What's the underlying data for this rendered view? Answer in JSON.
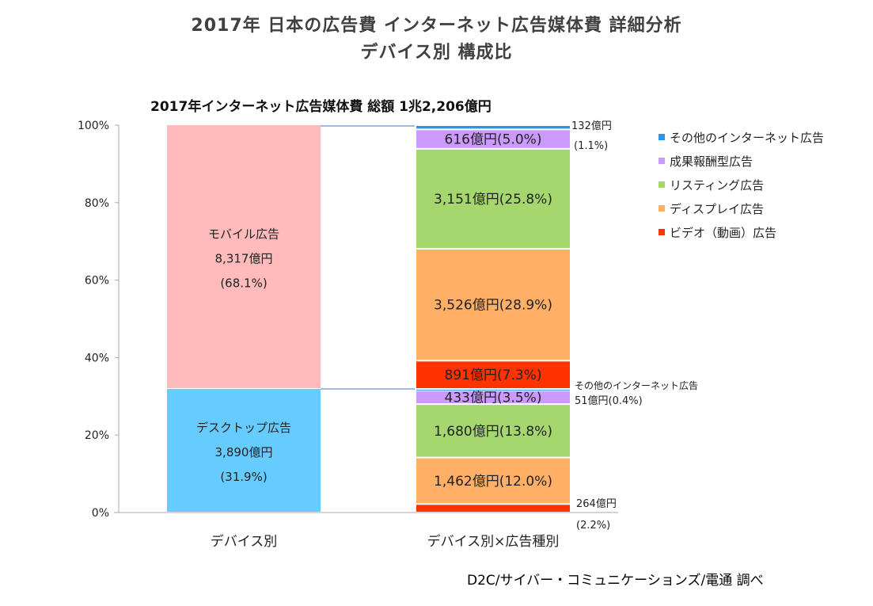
{
  "titles": {
    "line1": "2017年 日本の広告費  インターネット広告媒体費  詳細分析",
    "line2": "デバイス別  構成比"
  },
  "subtitle": "2017年インターネット広告媒体費  総額  1兆2,206億円",
  "source": "D2C/サイバー・コミュニケーションズ/電通 調べ",
  "chart_data": {
    "type": "bar",
    "stacked": true,
    "percent_stacked": true,
    "title": "2017年インターネット広告媒体費  総額  1兆2,206億円",
    "xlabel": "",
    "ylabel": "",
    "ylim": [
      0,
      100
    ],
    "yticks": [
      "0%",
      "20%",
      "40%",
      "60%",
      "80%",
      "100%"
    ],
    "categories": [
      "デバイス別",
      "デバイス別×広告種別"
    ],
    "legend_position": "right",
    "legend": [
      {
        "name": "その他のインターネット広告",
        "color": "#2E94E6"
      },
      {
        "name": "成果報酬型広告",
        "color": "#CC99FF"
      },
      {
        "name": "リスティング広告",
        "color": "#A5D76E"
      },
      {
        "name": "ディスプレイ広告",
        "color": "#FFB066"
      },
      {
        "name": "ビデオ（動画）広告",
        "color": "#FF3300"
      }
    ],
    "device_bar": [
      {
        "name": "デスクトップ広告",
        "value_oku_yen": 3890,
        "percent": 31.9,
        "color": "#66CCFF",
        "label_lines": [
          "デスクトップ広告",
          "3,890億円",
          "(31.9%)"
        ]
      },
      {
        "name": "モバイル広告",
        "value_oku_yen": 8317,
        "percent": 68.1,
        "color": "#FFBBBB",
        "label_lines": [
          "モバイル広告",
          "8,317億円",
          "(68.1%)"
        ]
      }
    ],
    "detail_bar": [
      {
        "device": "デスクトップ",
        "type": "ビデオ（動画）広告",
        "value_oku_yen": 264,
        "percent": 2.2,
        "color": "#FF3300",
        "label_outside": [
          "264億円",
          "(2.2%)"
        ]
      },
      {
        "device": "デスクトップ",
        "type": "ディスプレイ広告",
        "value_oku_yen": 1462,
        "percent": 12.0,
        "color": "#FFB066",
        "label": "1,462億円(12.0%)"
      },
      {
        "device": "デスクトップ",
        "type": "リスティング広告",
        "value_oku_yen": 1680,
        "percent": 13.8,
        "color": "#A5D76E",
        "label": "1,680億円(13.8%)"
      },
      {
        "device": "デスクトップ",
        "type": "成果報酬型広告",
        "value_oku_yen": 433,
        "percent": 3.5,
        "color": "#CC99FF",
        "label": "433億円(3.5%)"
      },
      {
        "device": "デスクトップ",
        "type": "その他のインターネット広告",
        "value_oku_yen": 51,
        "percent": 0.4,
        "color": "#2E94E6",
        "label_outside": [
          "その他のインターネット広告",
          "51億円(0.4%)"
        ]
      },
      {
        "device": "モバイル",
        "type": "ビデオ（動画）広告",
        "value_oku_yen": 891,
        "percent": 7.3,
        "color": "#FF3300",
        "label": "891億円(7.3%)"
      },
      {
        "device": "モバイル",
        "type": "ディスプレイ広告",
        "value_oku_yen": 3526,
        "percent": 28.9,
        "color": "#FFB066",
        "label": "3,526億円(28.9%)"
      },
      {
        "device": "モバイル",
        "type": "リスティング広告",
        "value_oku_yen": 3151,
        "percent": 25.8,
        "color": "#A5D76E",
        "label": "3,151億円(25.8%)"
      },
      {
        "device": "モバイル",
        "type": "成果報酬型広告",
        "value_oku_yen": 616,
        "percent": 5.0,
        "color": "#CC99FF",
        "label": "616億円(5.0%)"
      },
      {
        "device": "モバイル",
        "type": "その他のインターネット広告",
        "value_oku_yen": 132,
        "percent": 1.1,
        "color": "#2E94E6",
        "label_outside": [
          "132億円",
          "(1.1%)"
        ]
      }
    ]
  }
}
